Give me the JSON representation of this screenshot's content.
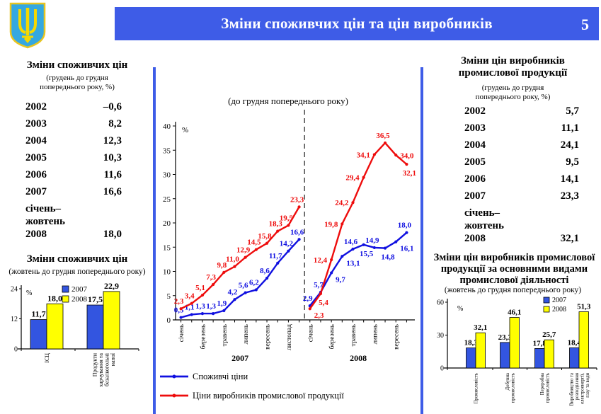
{
  "header": {
    "title": "Зміни споживчих цін та цін виробників",
    "page_number": "5",
    "accent_color": "#3E5CE7"
  },
  "left": {
    "table": {
      "title": "Зміни споживчих цін",
      "subtitle": "(грудень до грудня\nпопереднього року, %)",
      "rows": [
        {
          "label": "2002",
          "value": "–0,6"
        },
        {
          "label": "2003",
          "value": "8,2"
        },
        {
          "label": "2004",
          "value": "12,3"
        },
        {
          "label": "2005",
          "value": "10,3"
        },
        {
          "label": "2006",
          "value": "11,6"
        },
        {
          "label": "2007",
          "value": "16,6"
        },
        {
          "label": "січень–\nжовтень\n2008",
          "value": "18,0"
        }
      ]
    }
  },
  "right": {
    "table": {
      "title": "Зміни цін виробників\nпромислової продукції",
      "subtitle": "(грудень до грудня\nпопереднього року, %)",
      "rows": [
        {
          "label": "2002",
          "value": "5,7"
        },
        {
          "label": "2003",
          "value": "11,1"
        },
        {
          "label": "2004",
          "value": "24,1"
        },
        {
          "label": "2005",
          "value": "9,5"
        },
        {
          "label": "2006",
          "value": "14,1"
        },
        {
          "label": "2007",
          "value": "23,3"
        },
        {
          "label": "січень–\nжовтень\n2008",
          "value": "32,1"
        }
      ]
    }
  },
  "chart_data": [
    {
      "id": "line-main",
      "type": "line",
      "title": "(до грудня попереднього року)",
      "ylabel": "%",
      "ylim": [
        0,
        40
      ],
      "yticks": [
        0,
        5,
        10,
        15,
        20,
        25,
        30,
        35,
        40
      ],
      "x_tick_labels": [
        "січень",
        "березень",
        "травень",
        "липень",
        "вересень",
        "листопад",
        "січень",
        "березень",
        "травень",
        "липень",
        "вересень"
      ],
      "x_tick_indices": [
        0,
        2,
        4,
        6,
        8,
        10,
        12,
        14,
        16,
        18,
        20
      ],
      "year_labels": [
        "2007",
        "2008"
      ],
      "separator_after_index": 11,
      "legend_position": "bottom-left",
      "series": [
        {
          "name": "Споживчі ціни",
          "color": "#1010E0",
          "values": [
            0.5,
            1.1,
            1.3,
            1.3,
            1.9,
            4.2,
            5.6,
            6.2,
            8.6,
            11.7,
            14.2,
            16.6,
            2.9,
            5.7,
            9.7,
            13.1,
            14.6,
            15.5,
            14.9,
            14.8,
            16.1,
            18.0
          ],
          "label_side": [
            "a",
            "a",
            "a",
            "a",
            "a",
            "a",
            "a",
            "a",
            "a",
            "a",
            "a",
            "a",
            "a",
            "a",
            "rb",
            "rb",
            "a",
            "b",
            "a",
            "b",
            "rb",
            "a"
          ]
        },
        {
          "name": "Ціни виробників промислової продукції",
          "color": "#EE0C0C",
          "values": [
            2.3,
            3.4,
            5.1,
            7.3,
            9.8,
            11.0,
            12.9,
            14.5,
            15.8,
            18.3,
            19.5,
            23.3,
            2.3,
            5.4,
            12.4,
            19.8,
            24.2,
            29.4,
            34.1,
            36.5,
            34.0,
            32.1
          ],
          "label_side": [
            "a",
            "a",
            "a",
            "a",
            "a",
            "a",
            "a",
            "a",
            "a",
            "a",
            "a",
            "a",
            "rb",
            "b",
            "l",
            "l",
            "l",
            "l",
            "l",
            "a",
            "r",
            "b"
          ]
        }
      ]
    },
    {
      "id": "bar-left",
      "type": "bar",
      "title": "Зміни споживчих цін",
      "subtitle": "(жовтень до грудня попереднього року)",
      "ylabel": "%",
      "ylim": [
        0,
        24
      ],
      "yticks": [
        0,
        12,
        24
      ],
      "categories": [
        "ІСЦ",
        "Продукти\nхарчування та\nбезалкогольні\nнапої"
      ],
      "legend_position": "top-center",
      "series": [
        {
          "name": "2007",
          "color": "#3355E0",
          "values": [
            11.7,
            17.5
          ]
        },
        {
          "name": "2008",
          "color": "#FFFF00",
          "values": [
            18.0,
            22.9
          ]
        }
      ]
    },
    {
      "id": "bar-right",
      "type": "bar",
      "title": "Зміни цін виробників промислової продукції за основними видами промислової діяльності",
      "subtitle": "(жовтень до грудня попереднього року)",
      "ylabel": "%",
      "ylim": [
        0,
        60
      ],
      "yticks": [
        0,
        30,
        60
      ],
      "categories": [
        "Промисловість",
        "Добувна\nпромисловість",
        "Переробна\nпромисловість",
        "Виробництво та\nрозподілення\nелектроенергії,\nгазу та води"
      ],
      "legend_position": "top-right",
      "series": [
        {
          "name": "2007",
          "color": "#3355E0",
          "values": [
            18.3,
            23.3,
            17.8,
            18.4
          ]
        },
        {
          "name": "2008",
          "color": "#FFFF00",
          "values": [
            32.1,
            46.1,
            25.7,
            51.3
          ]
        }
      ]
    }
  ]
}
